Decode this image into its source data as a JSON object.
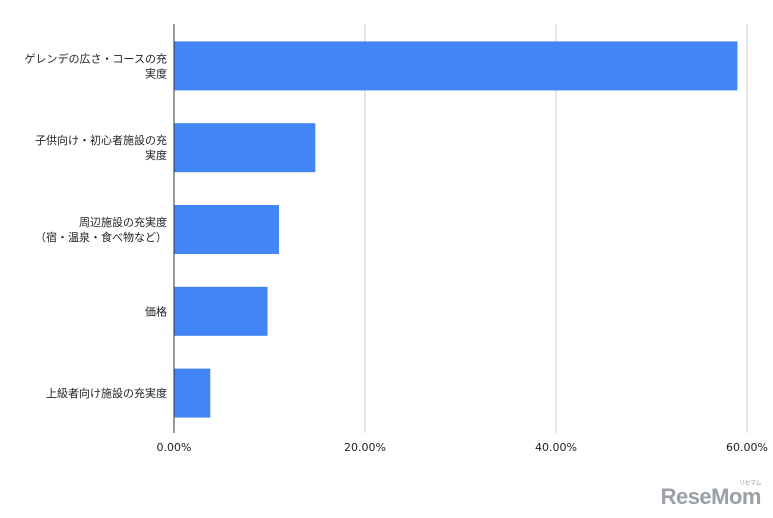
{
  "chart_data": {
    "type": "bar",
    "orientation": "horizontal",
    "categories": [
      [
        "ゲレンデの広さ・コースの充",
        "実度"
      ],
      [
        "子供向け・初心者施設の充",
        "実度"
      ],
      [
        "周辺施設の充実度",
        "（宿・温泉・食べ物など）"
      ],
      [
        "価格"
      ],
      [
        "上級者向け施設の充実度"
      ]
    ],
    "values": [
      59.0,
      14.8,
      11.0,
      9.8,
      3.8
    ],
    "xlim": [
      0,
      60
    ],
    "xticks": [
      "0.00%",
      "20.00%",
      "40.00%",
      "60.00%"
    ],
    "xtick_values": [
      0,
      20,
      40,
      60
    ],
    "grid": "vertical",
    "bar_color": "#4285f4",
    "grid_color": "#cccccc",
    "axis_color": "#333333",
    "title": "",
    "xlabel": "",
    "ylabel": ""
  },
  "watermark": {
    "text": "ReseMom",
    "kana": "リセマム"
  }
}
